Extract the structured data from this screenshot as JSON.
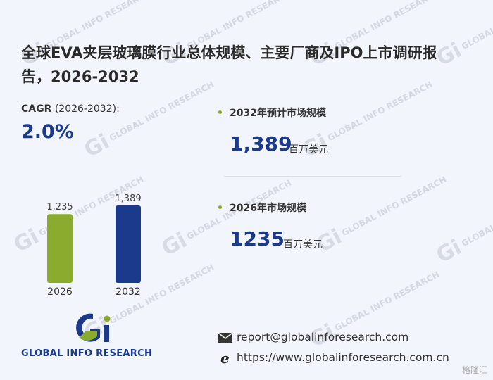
{
  "title": "全球EVA夹层玻璃膜行业总体规模、主要厂商及IPO上市调研报告，2026-2032",
  "cagr": {
    "label_prefix": "CAGR",
    "label_period": "(2026-2032):",
    "value": "2.0%"
  },
  "stats": [
    {
      "label": "2032年预计市场规模",
      "value": "1,389",
      "unit": "百万美元"
    },
    {
      "label": "2026年市场规模",
      "value": "1235",
      "unit": "百万美元"
    }
  ],
  "chart_data": {
    "type": "bar",
    "categories": [
      "2026",
      "2032"
    ],
    "values": [
      1235,
      1389
    ],
    "data_labels": [
      "1,235",
      "1,389"
    ],
    "bar_colors": [
      "#8aab2e",
      "#1b3a8c"
    ],
    "ylim": [
      0,
      1389
    ]
  },
  "logo": {
    "text": "GLOBAL INFO RESEARCH"
  },
  "contact": {
    "email": "report@globalinforesearch.com",
    "website": "https://www.globalinforesearch.com.cn"
  },
  "watermark": {
    "text": "GLOBAL INFO RESEARCH",
    "mark": "Gi"
  },
  "corner_badge": "格隆汇",
  "colors": {
    "accent_blue": "#1b3a8c",
    "accent_green": "#8aab2e",
    "background": "#f2f5fb"
  }
}
